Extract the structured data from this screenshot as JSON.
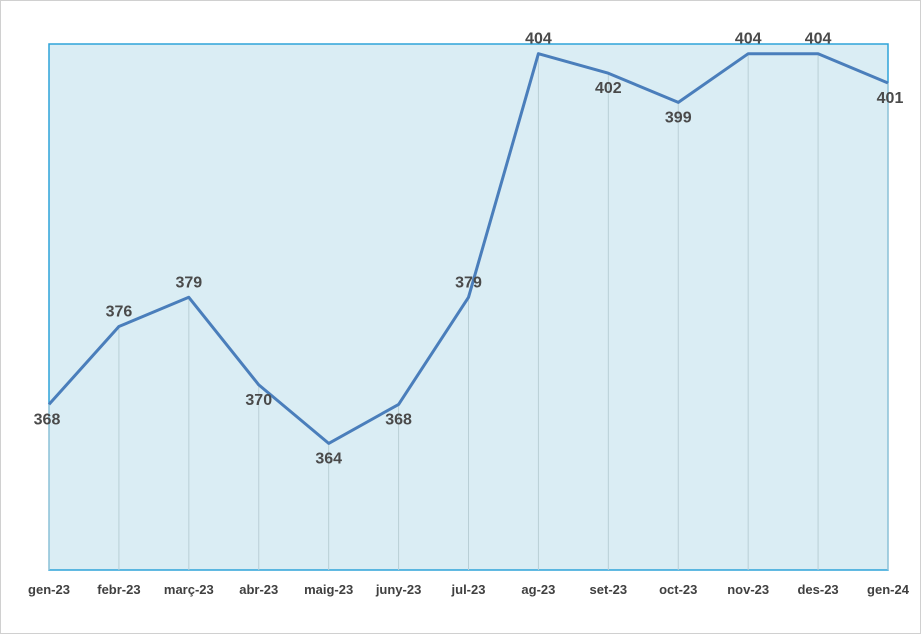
{
  "chart_data": {
    "type": "line",
    "categories": [
      "gen-23",
      "febr-23",
      "març-23",
      "abr-23",
      "maig-23",
      "juny-23",
      "jul-23",
      "ag-23",
      "set-23",
      "oct-23",
      "nov-23",
      "des-23",
      "gen-24"
    ],
    "series": [
      {
        "values": [
          368,
          376,
          379,
          370,
          364,
          368,
          379,
          404,
          402,
          399,
          404,
          404,
          401
        ]
      }
    ],
    "data_labels": [
      "368",
      "376",
      "379",
      "370",
      "364",
      "368",
      "379",
      "404",
      "402",
      "399",
      "404",
      "404",
      "401"
    ],
    "ylim": [
      351,
      405
    ],
    "grid": "vertical drop lines",
    "legend": "none",
    "colors": {
      "line": "#4a7ebb",
      "plot_background": "#daedf4",
      "plot_border": "#2ea3d9",
      "drop_lines": "#b9cfd6"
    }
  }
}
